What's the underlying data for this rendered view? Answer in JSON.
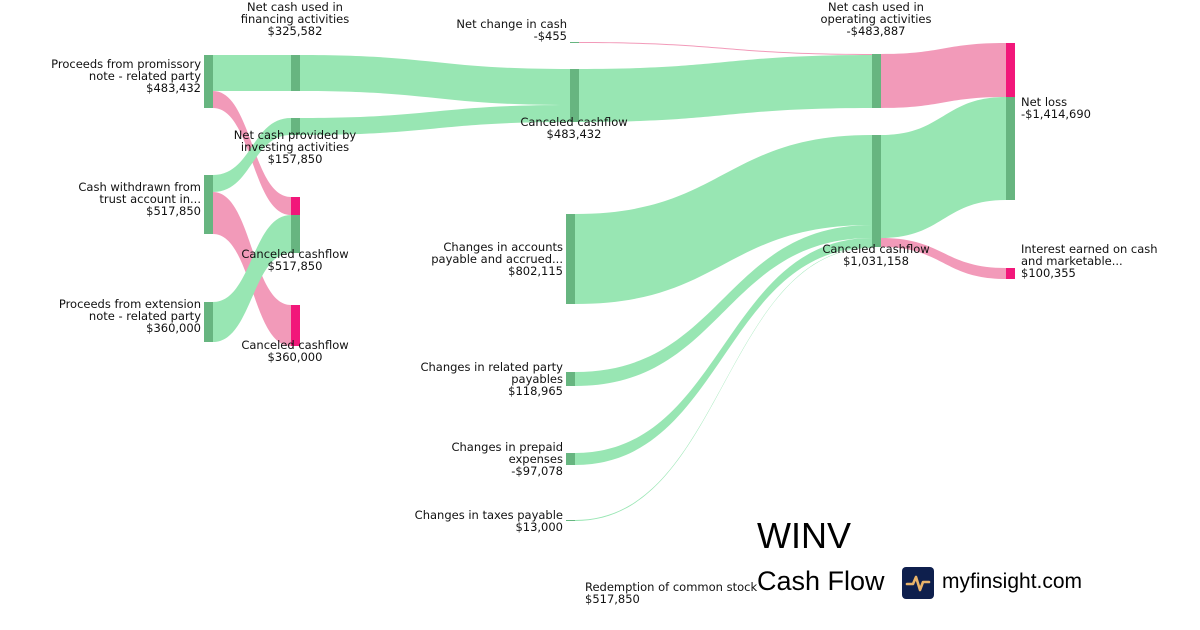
{
  "title": "WINV",
  "subtitle": "Cash Flow",
  "brand": "myfinsight.com",
  "colors": {
    "inflow_link": "#98e6b3",
    "inflow_node": "#67b580",
    "outflow_link": "#f29ab9",
    "outflow_node": "#f2177a"
  },
  "nodes": [
    {
      "name": "Proceeds from promissory note - related party",
      "lines": [
        "Proceeds from promissory",
        "note - related party"
      ],
      "value": "$483,432"
    },
    {
      "name": "Cash withdrawn from trust account in...",
      "lines": [
        "Cash withdrawn from",
        "trust account in..."
      ],
      "value": "$517,850"
    },
    {
      "name": "Proceeds from extension note - related party",
      "lines": [
        "Proceeds from extension",
        "note - related party"
      ],
      "value": "$360,000"
    },
    {
      "name": "Net cash used in financing activities",
      "lines": [
        "Net cash used in",
        "financing activities"
      ],
      "value": "$325,582"
    },
    {
      "name": "Net cash provided by investing activities",
      "lines": [
        "Net cash provided by",
        "investing activities"
      ],
      "value": "$157,850"
    },
    {
      "name": "Canceled cashflow",
      "lines": [],
      "value": ""
    },
    {
      "name": "Canceled cashflow",
      "lines": [
        "Canceled cashflow"
      ],
      "value": "$517,850"
    },
    {
      "name": "Canceled cashflow",
      "lines": [
        "Canceled cashflow"
      ],
      "value": "$360,000"
    },
    {
      "name": "Net change in cash",
      "lines": [
        "Net change in cash"
      ],
      "value": "-$455"
    },
    {
      "name": "Canceled cashflow",
      "lines": [
        "Canceled cashflow"
      ],
      "value": "$483,432"
    },
    {
      "name": "Changes in accounts payable and accrued...",
      "lines": [
        "Changes in accounts",
        "payable and accrued..."
      ],
      "value": "$802,115"
    },
    {
      "name": "Changes in related party payables",
      "lines": [
        "Changes in related party",
        "payables"
      ],
      "value": "$118,965"
    },
    {
      "name": "Changes in prepaid expenses",
      "lines": [
        "Changes in prepaid",
        "expenses"
      ],
      "value": "-$97,078"
    },
    {
      "name": "Changes in taxes payable",
      "lines": [
        "Changes in taxes payable"
      ],
      "value": "$13,000"
    },
    {
      "name": "Net cash used in operating activities",
      "lines": [
        "Net cash used in",
        "operating activities"
      ],
      "value": "-$483,887"
    },
    {
      "name": "Canceled cashflow",
      "lines": [
        "Canceled cashflow"
      ],
      "value": "$1,031,158"
    },
    {
      "name": "Net loss",
      "lines": [
        "Net loss"
      ],
      "value": "-$1,414,690"
    },
    {
      "name": "Interest earned on cash and marketable...",
      "lines": [
        "Interest earned on cash",
        "and marketable..."
      ],
      "value": "$100,355"
    },
    {
      "name": "Redemption of common stock",
      "lines": [
        "Redemption of common stock"
      ],
      "value": "$517,850"
    }
  ]
}
